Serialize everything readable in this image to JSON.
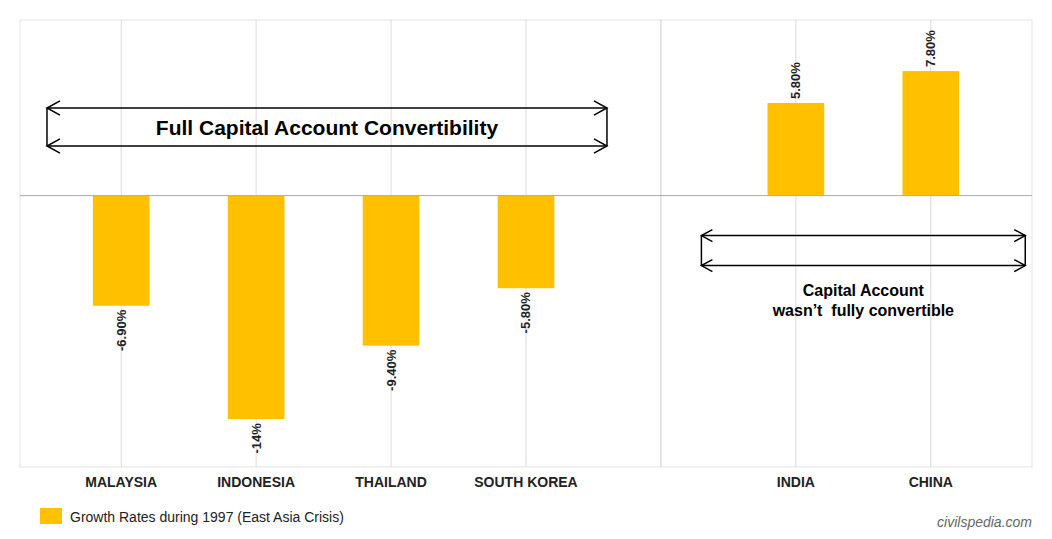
{
  "chart_data": {
    "type": "bar",
    "categories": [
      "MALAYSIA",
      "INDONESIA",
      "THAILAND",
      "SOUTH KOREA",
      "INDIA",
      "CHINA"
    ],
    "series": [
      {
        "name": "Growth Rates during 1997 (East Asia Crisis)",
        "color": "#FFC000",
        "values": [
          -6.9,
          -14.0,
          -9.4,
          -5.8,
          5.8,
          7.8
        ],
        "value_labels": [
          "-6.90%",
          "-14%",
          "-9.40%",
          "-5.80%",
          "5.80%",
          "7.80%"
        ]
      }
    ],
    "ylim": [
      -17,
      11
    ],
    "data_labels": true,
    "tick_labels": "x",
    "grid": true,
    "legend": "lower left",
    "annotations": [
      "Full Capital Account Convertibility",
      "Capital Account\nwasn’t  fully convertible",
      "civilspedia.com"
    ]
  }
}
